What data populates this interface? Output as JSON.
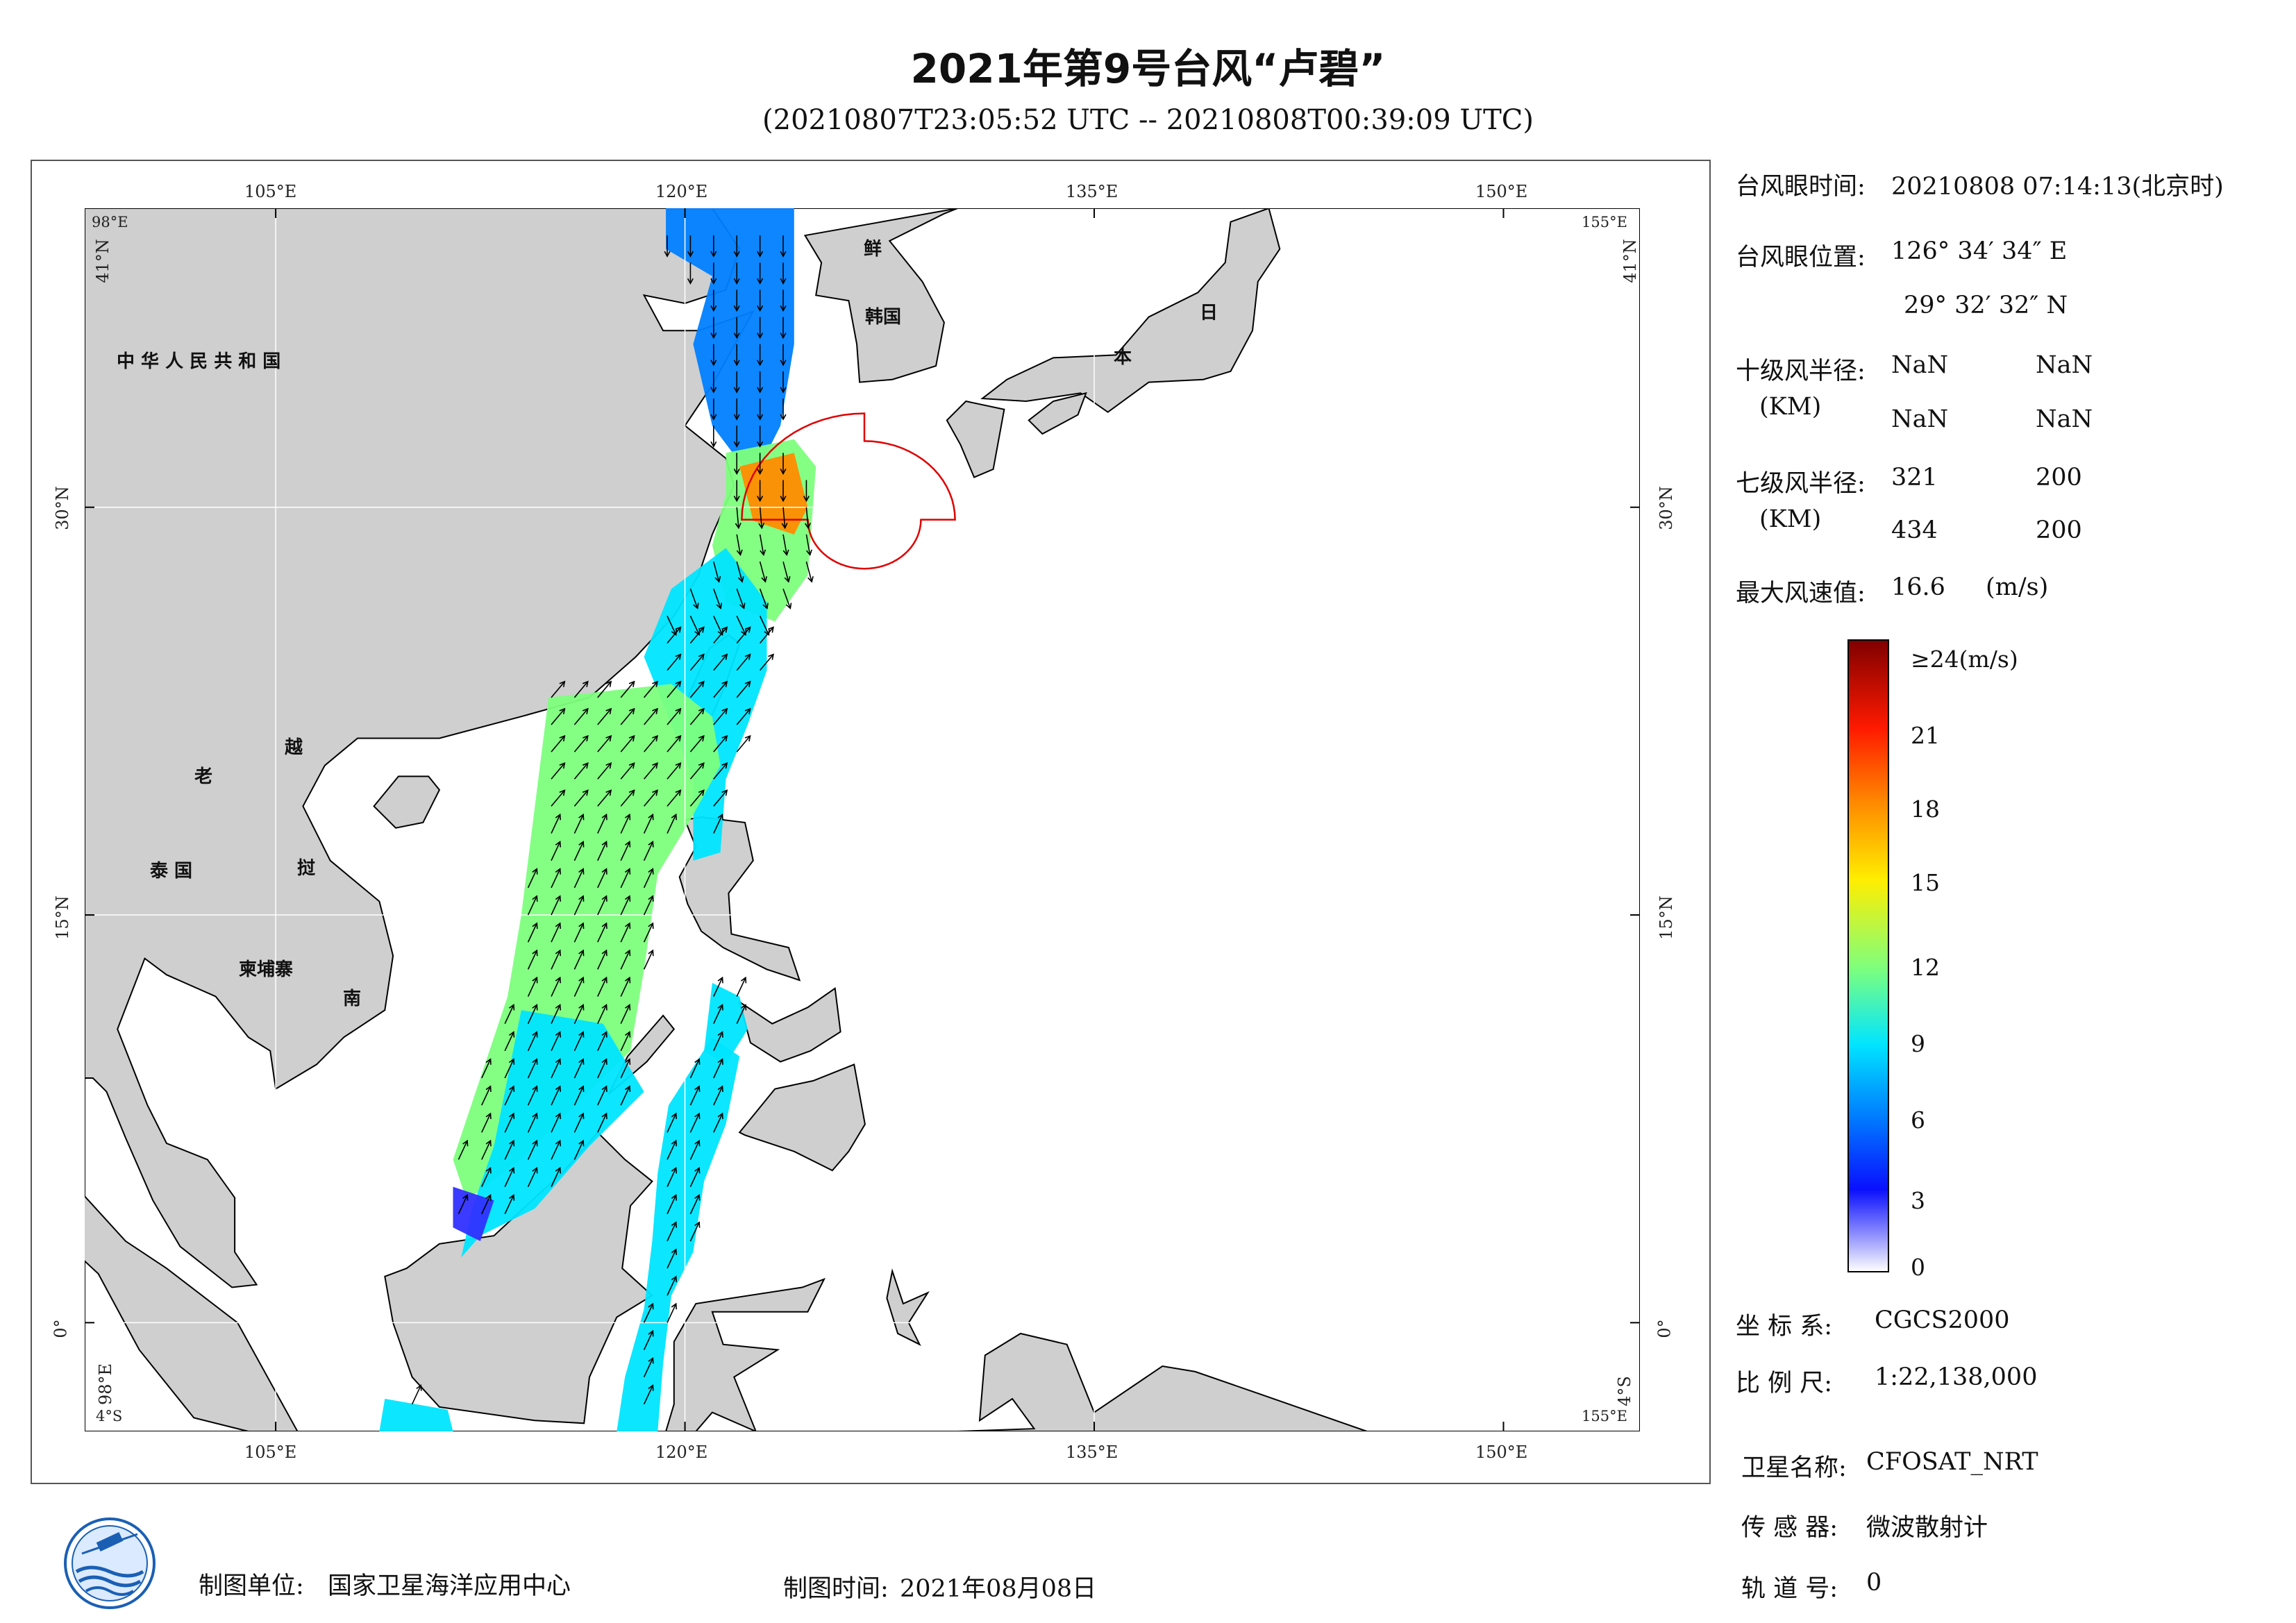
{
  "header": {
    "title": "2021年第9号台风“卢碧”",
    "subtitle": "(20210807T23:05:52 UTC -- 20210808T00:39:09 UTC)"
  },
  "map": {
    "lon_ticks": [
      "105°E",
      "120°E",
      "135°E",
      "150°E"
    ],
    "lat_ticks": [
      "30°N",
      "15°N",
      "0°"
    ],
    "corner_labels": {
      "top_left_lon": "98°E",
      "top_left_lat": "41°N",
      "top_right_lon": "155°E",
      "top_right_lat": "41°N",
      "bottom_left_lon": "98°E",
      "bottom_left_lat": "4°S",
      "bottom_right_lon": "155°E",
      "bottom_right_lat": "4°S"
    },
    "place_labels": {
      "china": "中 华 人 民 共 和 国",
      "laos": "老",
      "vietnam_1": "越",
      "vietnam_2": "南",
      "thailand": "泰  国",
      "cambodia": "柬埔寨",
      "vietnam_3": "挝",
      "korea_n": "鲜",
      "korea_s": "韩国",
      "japan_1": "日",
      "japan_2": "本"
    },
    "colors": {
      "land": "#cfcfcf",
      "sea": "#ffffff",
      "wind_radius": "#e00000",
      "coast": "#000000"
    }
  },
  "info": {
    "eye_time_label": "台风眼时间:",
    "eye_time_value": "20210808 07:14:13(北京时)",
    "eye_pos_label": "台风眼位置:",
    "eye_pos_lon": "126° 34′ 34″ E",
    "eye_pos_lat": "29° 32′ 32″ N",
    "r10_label": "十级风半径:",
    "r10_unit": "(KM)",
    "r10_values": [
      "NaN",
      "NaN",
      "NaN",
      "NaN"
    ],
    "r7_label": "七级风半径:",
    "r7_unit": "(KM)",
    "r7_values": [
      "321",
      "200",
      "434",
      "200"
    ],
    "max_wind_label": "最大风速值:",
    "max_wind_value": "16.6",
    "max_wind_unit": "(m/s)"
  },
  "colorbar": {
    "labels": [
      "≥24(m/s)",
      "21",
      "18",
      "15",
      "12",
      "9",
      "6",
      "3",
      "0"
    ],
    "stops": [
      "#800000",
      "#ff0000",
      "#ff8000",
      "#ffff00",
      "#80ff80",
      "#00ffff",
      "#0080ff",
      "#0000ff",
      "#ffffff"
    ]
  },
  "meta": {
    "crs_label": "坐 标 系:",
    "crs_value": "CGCS2000",
    "scale_label": "比 例 尺:",
    "scale_value": "1:22,138,000",
    "satellite_label": "卫星名称:",
    "satellite_value": "CFOSAT_NRT",
    "sensor_label": "传 感 器:",
    "sensor_value": "微波散射计",
    "orbit_label": "轨 道 号:",
    "orbit_value": "0"
  },
  "footer": {
    "unit_label": "制图单位:",
    "unit_value": "国家卫星海洋应用中心",
    "date_label": "制图时间:",
    "date_value": "2021年08月08日"
  }
}
